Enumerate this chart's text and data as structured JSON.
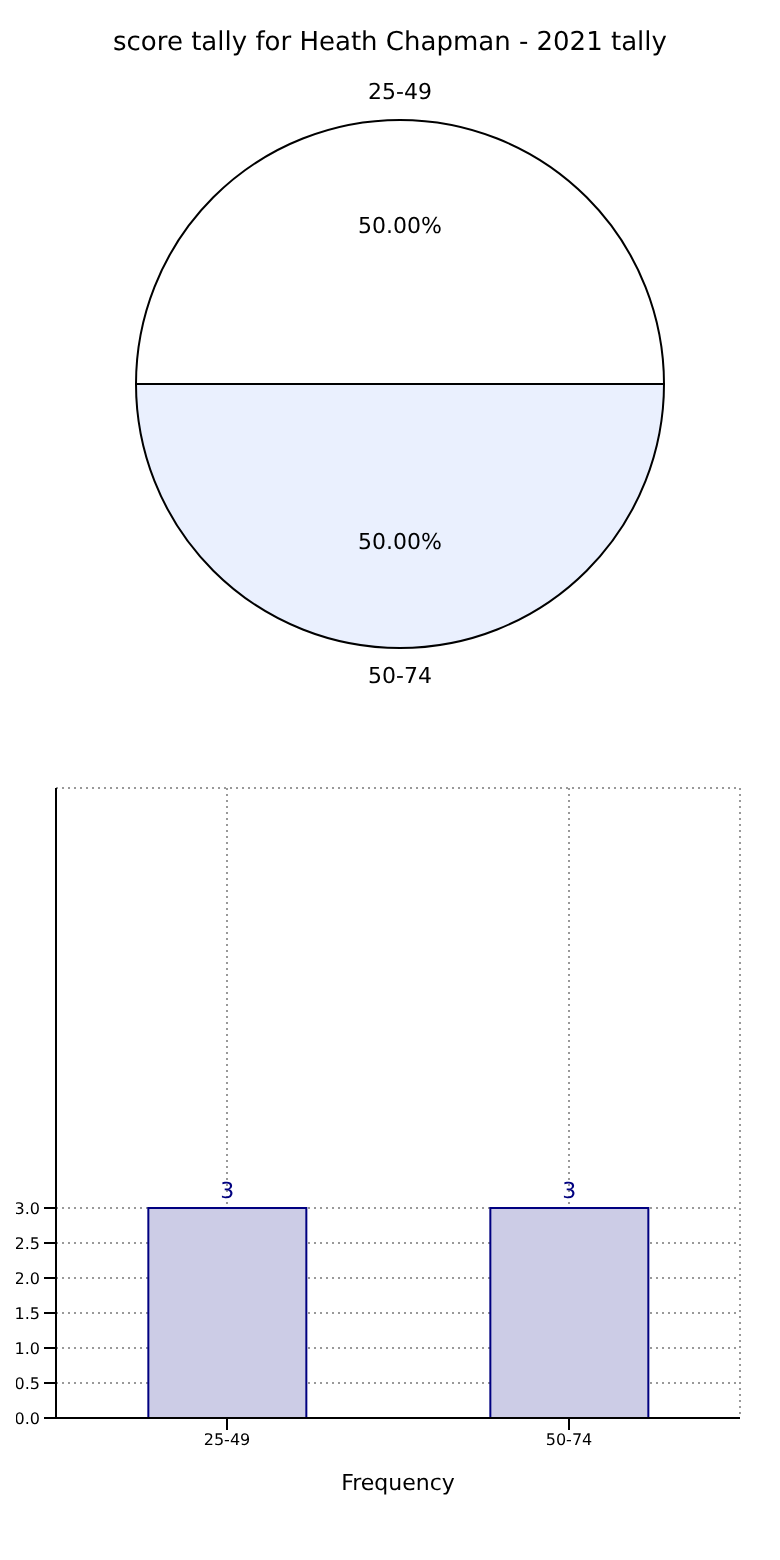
{
  "chart_data": [
    {
      "type": "pie",
      "title": "score tally for Heath Chapman - 2021 tally",
      "categories": [
        "25-49",
        "50-74"
      ],
      "values": [
        50,
        50
      ],
      "colors": [
        "#ffffff",
        "#eaf0fe"
      ],
      "value_labels": [
        "50.00%",
        "50.00%"
      ]
    },
    {
      "type": "bar",
      "xlabel": "Frequency",
      "categories": [
        "25-49",
        "50-74"
      ],
      "values": [
        3,
        3
      ],
      "color": "#ccccE6",
      "ylim": [
        0,
        9
      ],
      "yticks": [
        {
          "value": 0,
          "label": "0.0"
        },
        {
          "value": 0.5,
          "label": "0.5"
        },
        {
          "value": 1,
          "label": "1.0"
        },
        {
          "value": 1.5,
          "label": "1.5"
        },
        {
          "value": 2,
          "label": "2.0"
        },
        {
          "value": 2.5,
          "label": "2.5"
        },
        {
          "value": 3,
          "label": "3.0"
        }
      ],
      "grid": true,
      "data_labels": true
    }
  ]
}
